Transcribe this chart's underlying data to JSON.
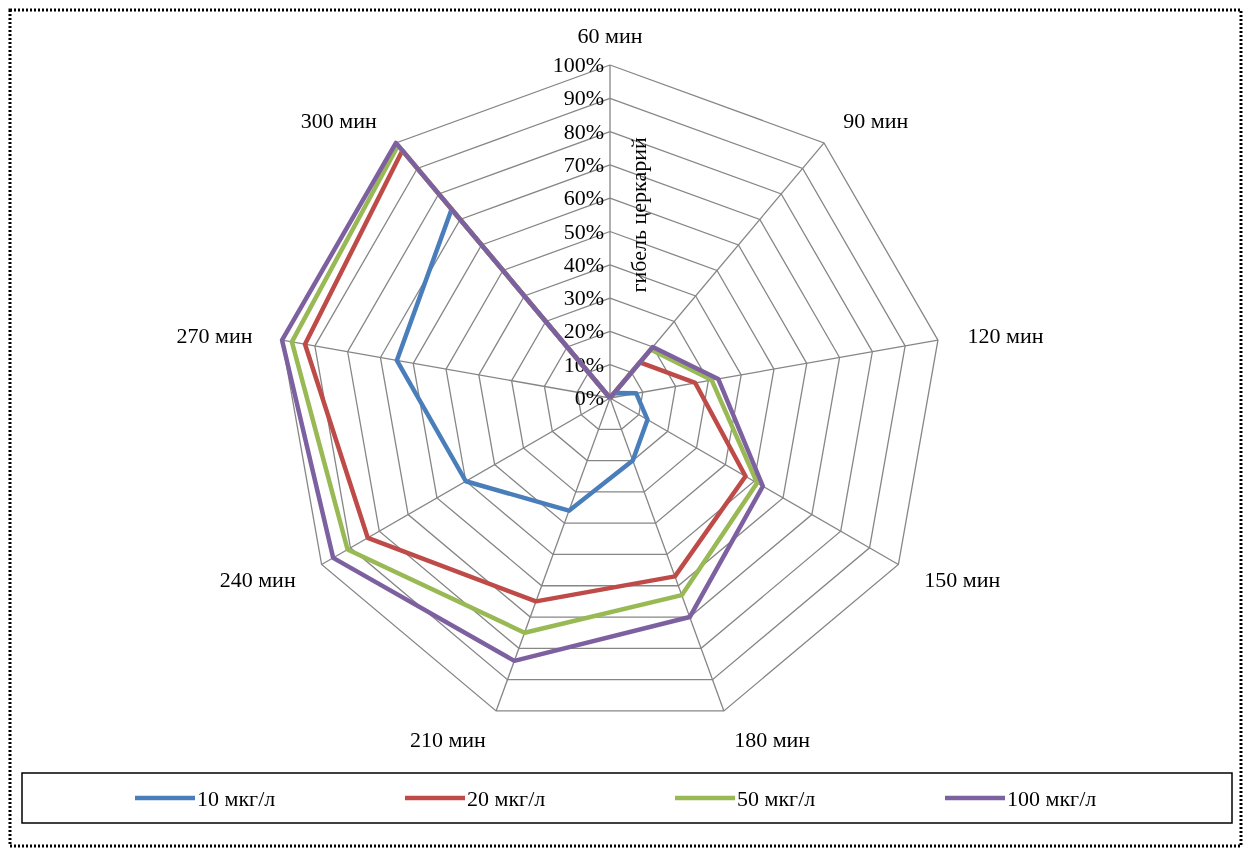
{
  "chart_data": {
    "type": "radar",
    "ylabel": "гибель церкарий",
    "categories": [
      "60 мин",
      "90 мин",
      "120 мин",
      "150 мин",
      "180 мин",
      "210 мин",
      "240 мин",
      "270 мин",
      "300 мин"
    ],
    "series": [
      {
        "name": "10 мкг/л",
        "color": "#4a7ebb",
        "values": [
          0,
          2,
          8,
          13,
          20,
          36,
          50,
          65,
          74
        ]
      },
      {
        "name": "20 мкг/л",
        "color": "#be4b48",
        "values": [
          0,
          14,
          26,
          47,
          57,
          65,
          84,
          93,
          97
        ]
      },
      {
        "name": "50 мкг/л",
        "color": "#98b954",
        "values": [
          0,
          19,
          31,
          51,
          63,
          75,
          91,
          97,
          99
        ]
      },
      {
        "name": "100 мкг/л",
        "color": "#7d60a0",
        "values": [
          0,
          20,
          33,
          53,
          70,
          84,
          96,
          100,
          100
        ]
      }
    ],
    "ylim": [
      0,
      100
    ],
    "yticks": [
      {
        "value": 0,
        "label": "0%"
      },
      {
        "value": 10,
        "label": "10%"
      },
      {
        "value": 20,
        "label": "20%"
      },
      {
        "value": 30,
        "label": "30%"
      },
      {
        "value": 40,
        "label": "40%"
      },
      {
        "value": 50,
        "label": "50%"
      },
      {
        "value": 60,
        "label": "60%"
      },
      {
        "value": 70,
        "label": "70%"
      },
      {
        "value": 80,
        "label": "80%"
      },
      {
        "value": 90,
        "label": "90%"
      },
      {
        "value": 100,
        "label": "100%"
      }
    ],
    "grid": true,
    "legend": "bottom",
    "marker": "none",
    "line_style": "solid"
  }
}
